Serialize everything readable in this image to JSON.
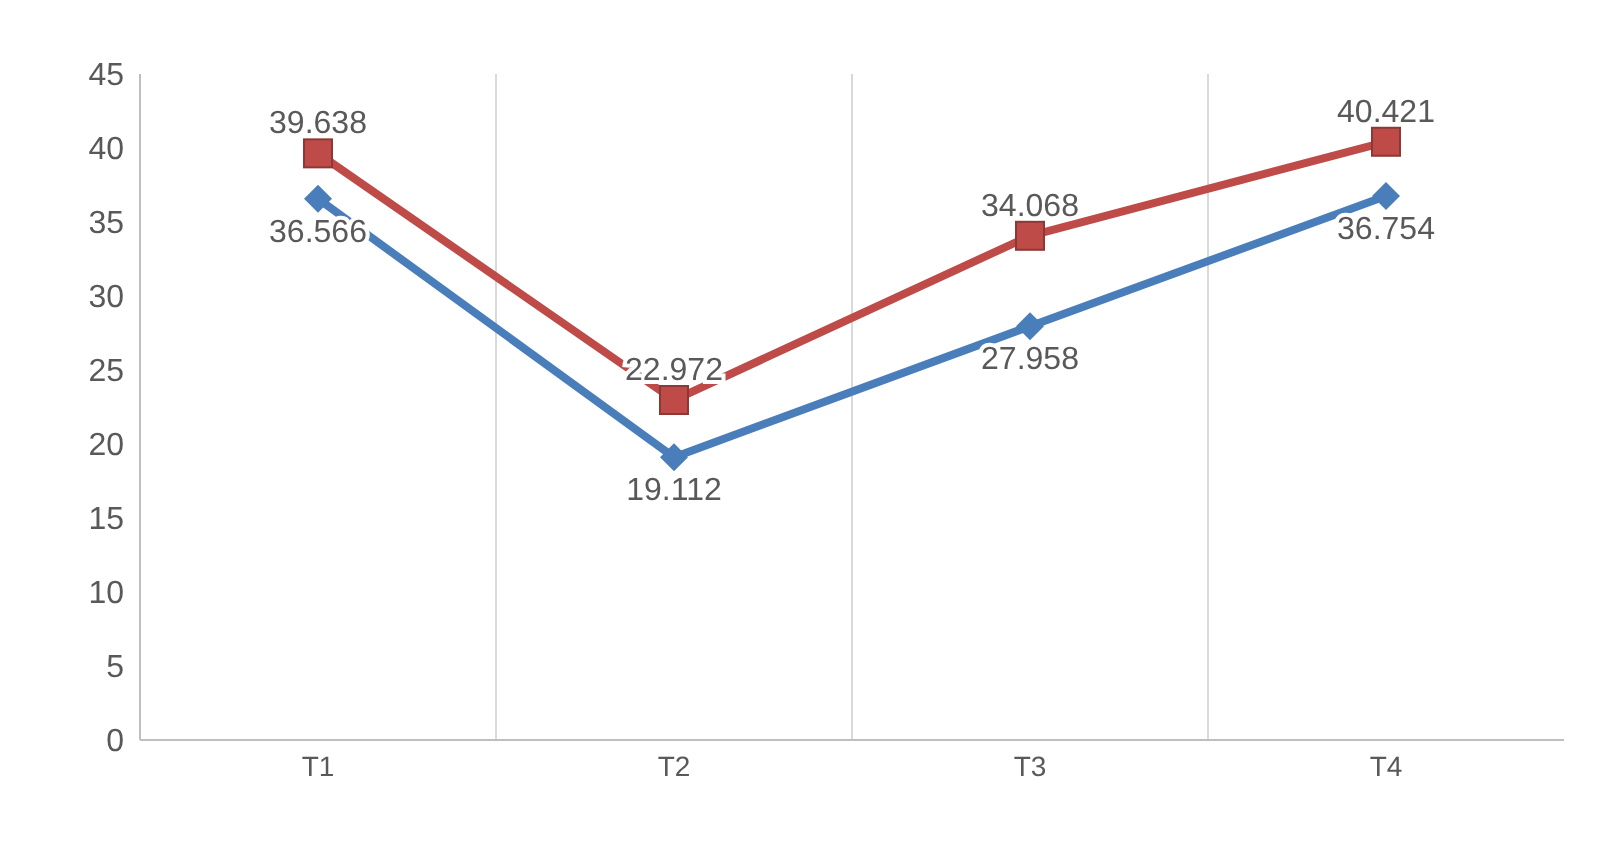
{
  "chart_data": {
    "type": "line",
    "categories": [
      "T1",
      "T2",
      "T3",
      "T4"
    ],
    "series": [
      {
        "color": "#4a7ebb",
        "marker": "diamond",
        "values": [
          36.566,
          19.112,
          27.958,
          36.754
        ]
      },
      {
        "color": "#be4b48",
        "marker": "square",
        "values": [
          39.638,
          22.972,
          34.068,
          40.421
        ]
      }
    ],
    "ylim": [
      0,
      45
    ],
    "yticks": [
      0,
      5,
      10,
      15,
      20,
      25,
      30,
      35,
      40,
      45
    ],
    "grid": "x",
    "data_labels": true
  }
}
